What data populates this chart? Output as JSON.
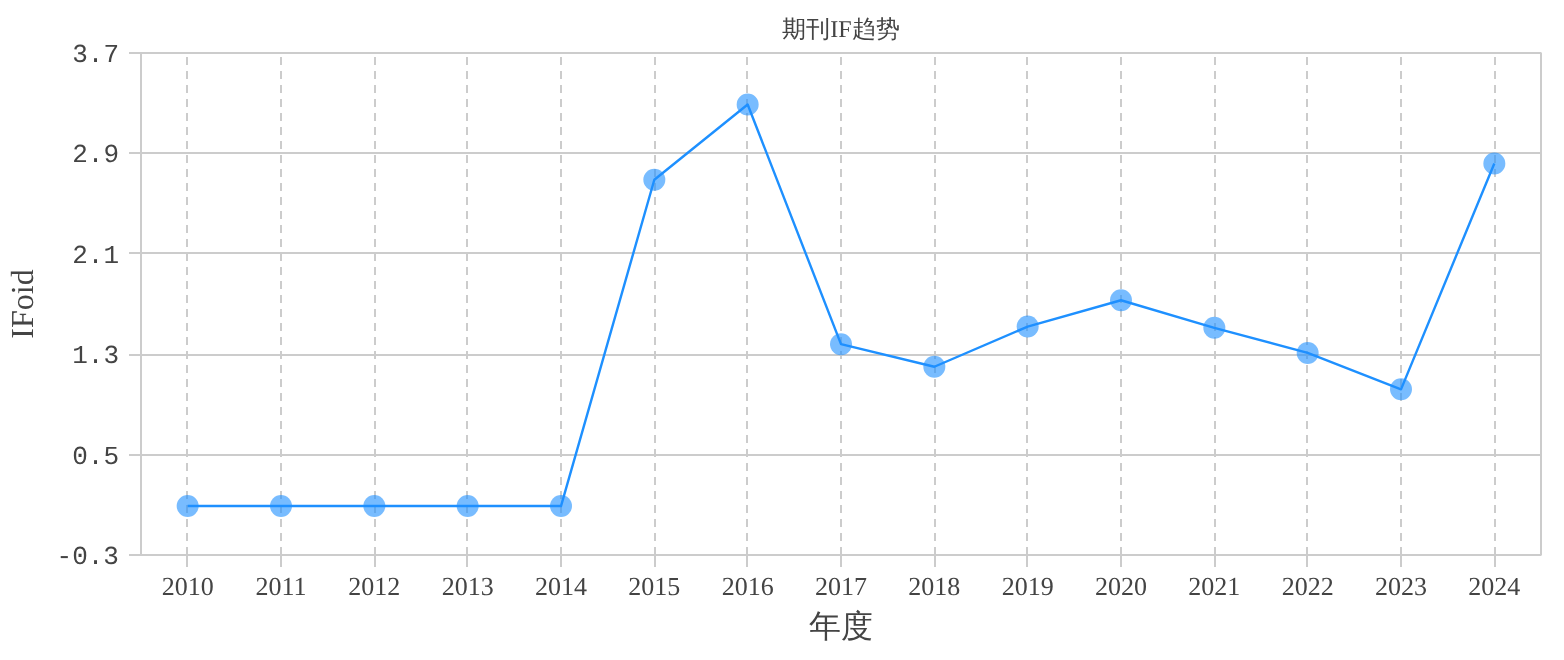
{
  "chart_data": {
    "type": "line",
    "title": "期刊IF趋势",
    "xlabel": "年度",
    "ylabel": "IFoid",
    "categories": [
      "2010",
      "2011",
      "2012",
      "2013",
      "2014",
      "2015",
      "2016",
      "2017",
      "2018",
      "2019",
      "2020",
      "2021",
      "2022",
      "2023",
      "2024"
    ],
    "series": [
      {
        "color": "#1e90ff",
        "values": [
          0.09,
          0.09,
          0.09,
          0.09,
          0.09,
          2.69,
          3.29,
          1.38,
          1.2,
          1.52,
          1.73,
          1.51,
          1.31,
          1.02,
          2.82
        ]
      }
    ],
    "ylim": [
      -0.3,
      3.7
    ],
    "yticks": [
      -0.3,
      0.5,
      1.3,
      2.1,
      2.9,
      3.7
    ],
    "grid": true,
    "marker": "circle",
    "line_style": "solid"
  }
}
